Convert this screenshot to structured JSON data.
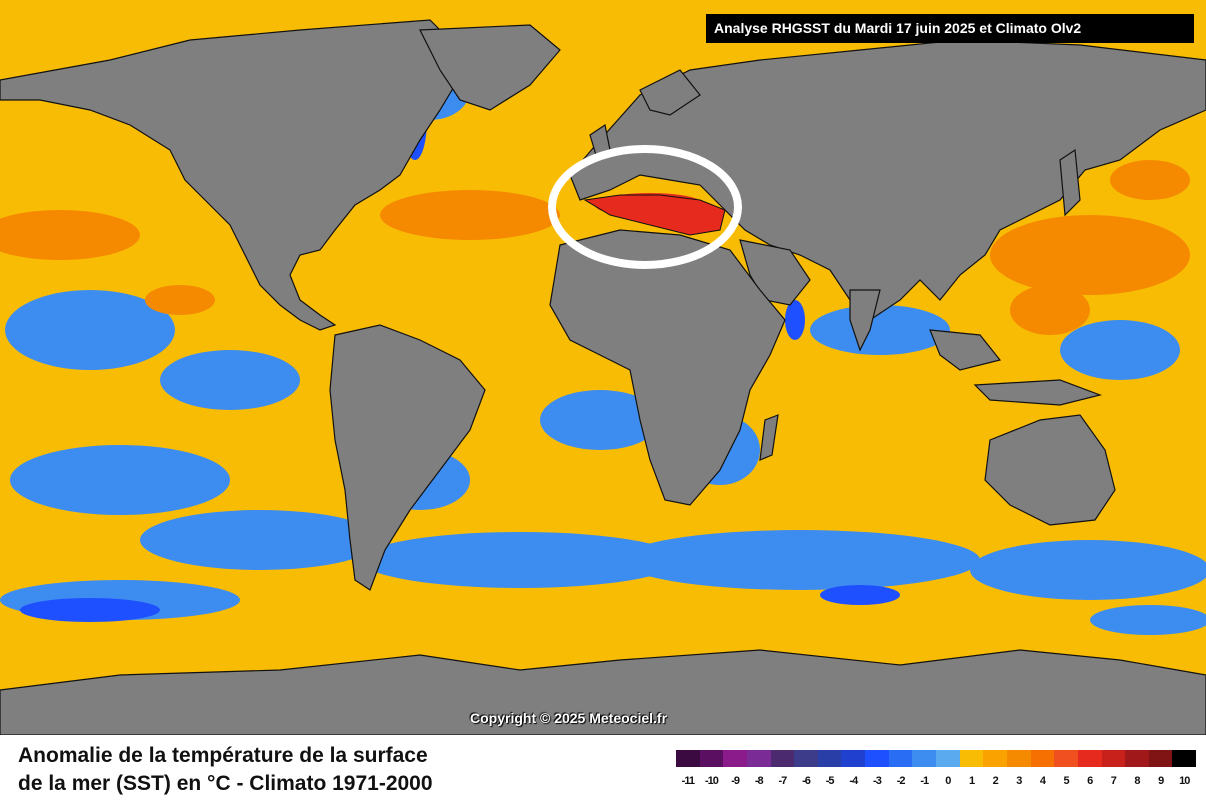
{
  "header": {
    "title": "Analyse RHGSST  du Mardi 17 juin 2025 et Climato Olv2"
  },
  "copyright": "Copyright © 2025 Meteociel.fr",
  "title": {
    "line1": "Anomalie de la température de la surface",
    "line2": "de la mer (SST) en °C - Climato 1971-2000"
  },
  "colors": {
    "ocean_base": "#f9bc05",
    "land": "#7f7f7f",
    "highlight_ring": "#ffffff"
  },
  "legend": {
    "labels": [
      "-11",
      "-10",
      "-9",
      "-8",
      "-7",
      "-6",
      "-5",
      "-4",
      "-3",
      "-2",
      "-1",
      "0",
      "1",
      "2",
      "3",
      "4",
      "5",
      "6",
      "7",
      "8",
      "9",
      "10"
    ],
    "colors": [
      "#3b0a40",
      "#5a0f60",
      "#8b1a8b",
      "#7b2b96",
      "#4b2a70",
      "#3c3c8a",
      "#2a3ea8",
      "#2040d0",
      "#1e50ff",
      "#2a6df5",
      "#3d8df0",
      "#5aaaf0",
      "#f9bc05",
      "#f9a200",
      "#f58a00",
      "#f57000",
      "#f05020",
      "#e62b1e",
      "#c8201a",
      "#a0181a",
      "#801414",
      "#000000"
    ]
  }
}
